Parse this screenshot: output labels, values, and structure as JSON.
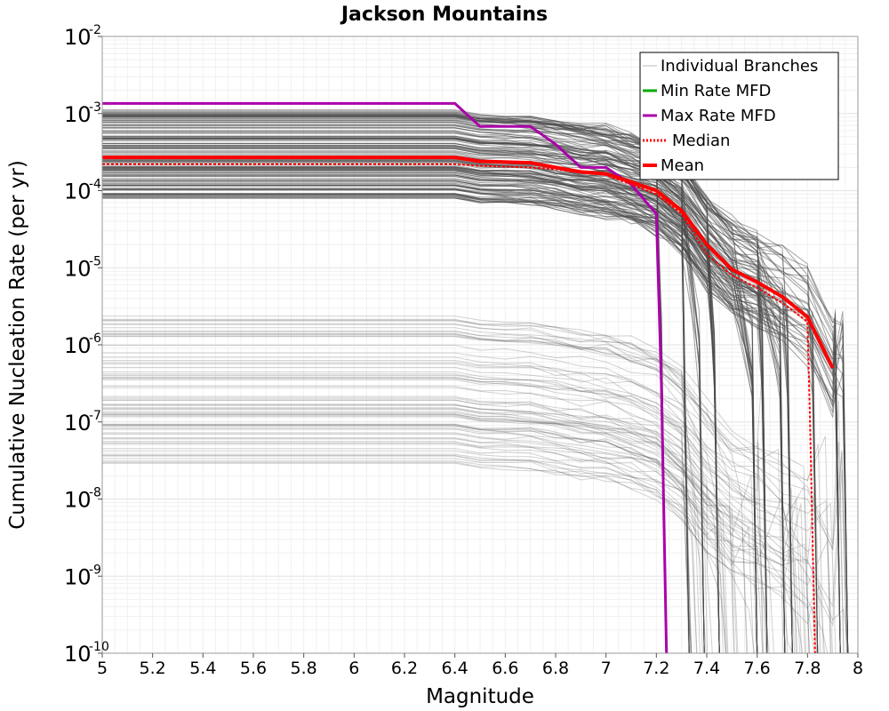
{
  "chart_data": {
    "type": "line",
    "title": "Jackson Mountains",
    "xlabel": "Magnitude",
    "ylabel": "Cumulative Nucleation Rate (per yr)",
    "xlim": [
      5,
      8
    ],
    "ylim": [
      1e-10,
      0.01
    ],
    "yscale": "log",
    "grid": true,
    "legend_position": "top-right",
    "x_ticks": [
      "5",
      "5.2",
      "5.4",
      "5.6",
      "5.8",
      "6",
      "6.2",
      "6.4",
      "6.6",
      "6.8",
      "7",
      "7.2",
      "7.4",
      "7.6",
      "7.8",
      "8"
    ],
    "y_ticks": [
      {
        "base": "10",
        "exp": "-2"
      },
      {
        "base": "10",
        "exp": "-3"
      },
      {
        "base": "10",
        "exp": "-4"
      },
      {
        "base": "10",
        "exp": "-5"
      },
      {
        "base": "10",
        "exp": "-6"
      },
      {
        "base": "10",
        "exp": "-7"
      },
      {
        "base": "10",
        "exp": "-8"
      },
      {
        "base": "10",
        "exp": "-9"
      },
      {
        "base": "10",
        "exp": "-10"
      }
    ],
    "legend": [
      {
        "label": "Individual Branches",
        "color": "#bbbbbb",
        "style": "solid-thin"
      },
      {
        "label": "Min Rate MFD",
        "color": "#00aa00",
        "style": "solid"
      },
      {
        "label": "Max Rate MFD",
        "color": "#aa00aa",
        "style": "solid"
      },
      {
        "label": "Median",
        "color": "#ff0000",
        "style": "dotted"
      },
      {
        "label": "Mean",
        "color": "#ff0000",
        "style": "solid-thick"
      }
    ],
    "series": [
      {
        "name": "Max Rate MFD",
        "color": "#aa00aa",
        "points": [
          [
            5.0,
            0.00135
          ],
          [
            6.4,
            0.00135
          ],
          [
            6.5,
            0.00068
          ],
          [
            6.7,
            0.00068
          ],
          [
            6.8,
            0.0004
          ],
          [
            6.9,
            0.0002
          ],
          [
            7.0,
            0.0002
          ],
          [
            7.1,
            0.00012
          ],
          [
            7.2,
            5e-05
          ],
          [
            7.22,
            3e-07
          ],
          [
            7.24,
            1e-10
          ]
        ]
      },
      {
        "name": "Mean",
        "color": "#ff0000",
        "points": [
          [
            5.0,
            0.00027
          ],
          [
            6.4,
            0.00027
          ],
          [
            6.5,
            0.00024
          ],
          [
            6.7,
            0.00023
          ],
          [
            6.8,
            0.0002
          ],
          [
            6.9,
            0.000175
          ],
          [
            7.0,
            0.000165
          ],
          [
            7.1,
            0.00013
          ],
          [
            7.2,
            0.0001
          ],
          [
            7.3,
            5.5e-05
          ],
          [
            7.4,
            2e-05
          ],
          [
            7.5,
            9.5e-06
          ],
          [
            7.6,
            6.5e-06
          ],
          [
            7.7,
            4.2e-06
          ],
          [
            7.8,
            2.3e-06
          ],
          [
            7.9,
            5e-07
          ]
        ]
      },
      {
        "name": "Median",
        "color": "#ff0000",
        "points": [
          [
            5.0,
            0.00022
          ],
          [
            6.4,
            0.00022
          ],
          [
            6.5,
            0.00021
          ],
          [
            6.7,
            0.0002
          ],
          [
            6.8,
            0.00019
          ],
          [
            6.9,
            0.00017
          ],
          [
            7.0,
            0.00016
          ],
          [
            7.1,
            0.00012
          ],
          [
            7.2,
            9e-05
          ],
          [
            7.3,
            5e-05
          ],
          [
            7.4,
            1.5e-05
          ],
          [
            7.5,
            8e-06
          ],
          [
            7.6,
            5.5e-06
          ],
          [
            7.7,
            3.5e-06
          ],
          [
            7.8,
            2e-06
          ],
          [
            7.81,
            1e-07
          ],
          [
            7.83,
            1e-10
          ]
        ]
      }
    ]
  }
}
